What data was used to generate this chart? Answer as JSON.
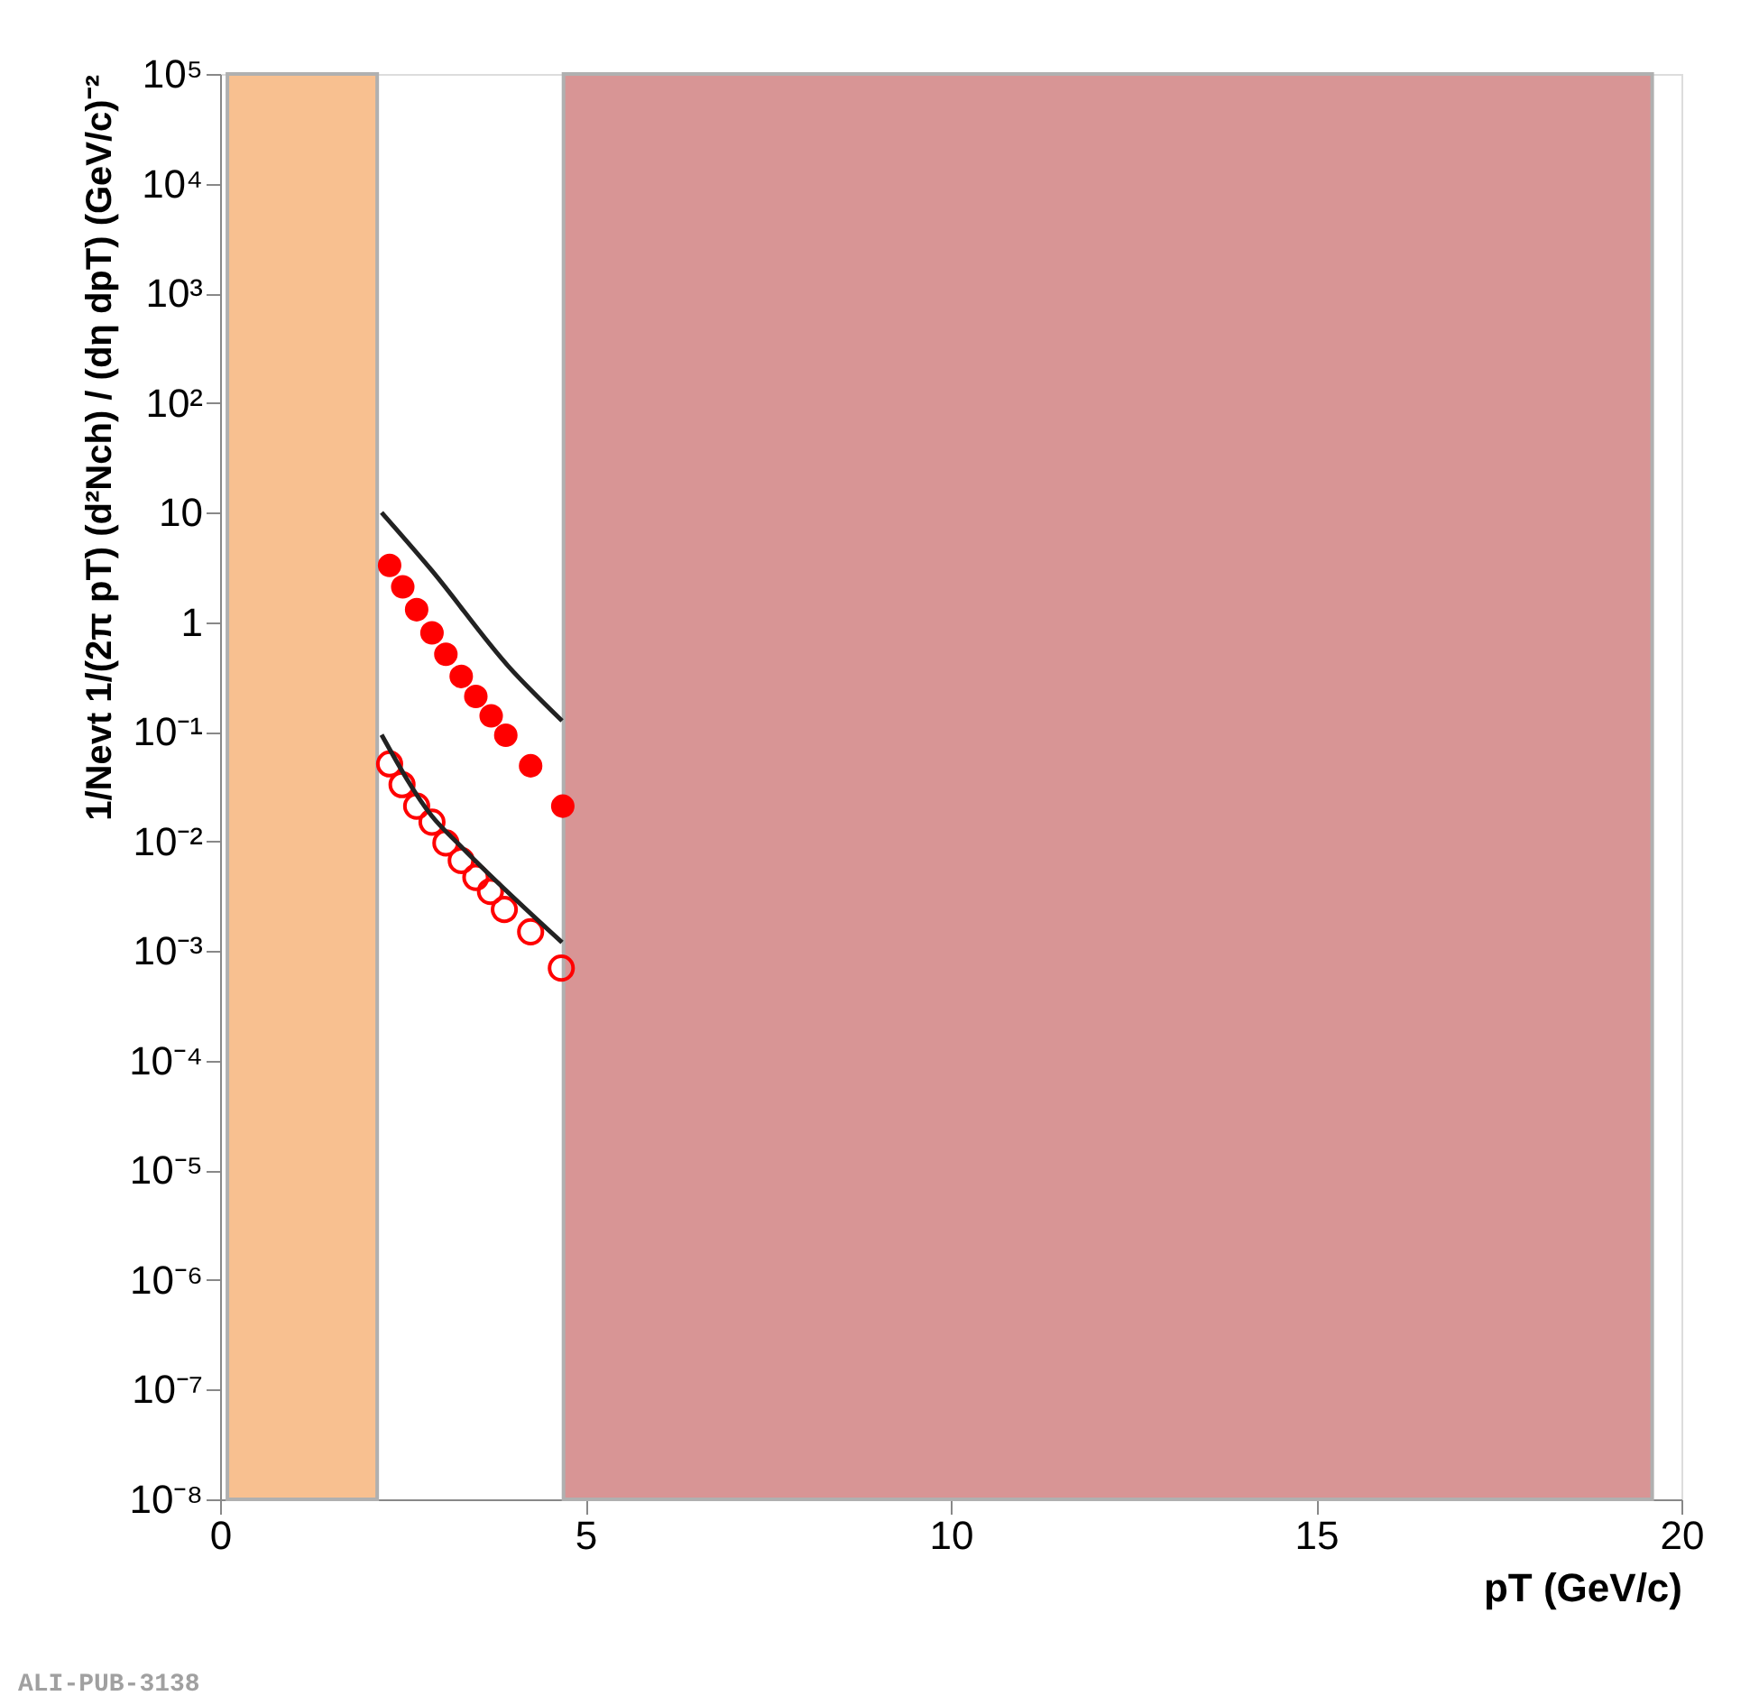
{
  "chart_data": {
    "type": "scatter",
    "xlabel": "pT (GeV/c)",
    "ylabel": "1/Nevt 1/(2π pT) (d²Nch) / (dη dpT) (GeV/c)⁻²",
    "xlim": [
      0,
      20
    ],
    "xticks": [
      0,
      5,
      10,
      15,
      20
    ],
    "ylim": [
      1e-08,
      100000
    ],
    "log": "y",
    "yticks": [
      {
        "value": 100000,
        "label": "10⁵"
      },
      {
        "value": 10000,
        "label": "10⁴"
      },
      {
        "value": 1000,
        "label": "10³"
      },
      {
        "value": 100,
        "label": "10²"
      },
      10,
      1,
      {
        "value": 0.1,
        "label": "10⁻¹"
      },
      {
        "value": 0.01,
        "label": "10⁻²"
      },
      {
        "value": 0.001,
        "label": "10⁻³"
      },
      {
        "value": 0.0001,
        "label": "10⁻⁴"
      },
      {
        "value": 1e-05,
        "label": "10⁻⁵"
      },
      {
        "value": 1e-06,
        "label": "10⁻⁶"
      },
      {
        "value": 1e-07,
        "label": "10⁻⁷"
      },
      {
        "value": 1e-08,
        "label": "10⁻⁸"
      }
    ],
    "grid": false,
    "marker": "circle",
    "bands": [
      {
        "axis": "x",
        "from": 0.1,
        "to": 2.15,
        "color": "#f8c090"
      },
      {
        "axis": "x",
        "from": 4.7,
        "to": 19.6,
        "color": "#d89595"
      }
    ],
    "series": [
      {
        "color": "#ff0000",
        "x": [
          2.32,
          2.5,
          2.69,
          2.9,
          3.09,
          3.3,
          3.5,
          3.71,
          3.91,
          4.25,
          4.69
        ],
        "values": [
          3.3,
          2.1,
          1.3,
          0.8,
          0.51,
          0.32,
          0.21,
          0.14,
          0.093,
          0.049,
          0.021
        ]
      },
      {
        "color": "#ff0000",
        "x": [
          2.32,
          2.49,
          2.69,
          2.9,
          3.09,
          3.3,
          3.5,
          3.7,
          3.89,
          4.25,
          4.67
        ],
        "values": [
          0.051,
          0.033,
          0.021,
          0.015,
          0.0097,
          0.0067,
          0.0047,
          0.0035,
          0.0024,
          0.0015,
          0.0007
        ]
      },
      {
        "type": "line",
        "marker": "none",
        "color": "#222222",
        "x": [
          2.21,
          2.89,
          3.94,
          4.68
        ],
        "values": [
          10,
          3.0,
          0.4,
          0.126
        ]
      },
      {
        "type": "line",
        "marker": "none",
        "color": "#222222",
        "x": [
          2.21,
          2.9,
          3.29,
          4.68
        ],
        "values": [
          0.094,
          0.017,
          0.0091,
          0.0012
        ]
      }
    ],
    "annotations": [
      "ALI-PUB-3138"
    ]
  }
}
